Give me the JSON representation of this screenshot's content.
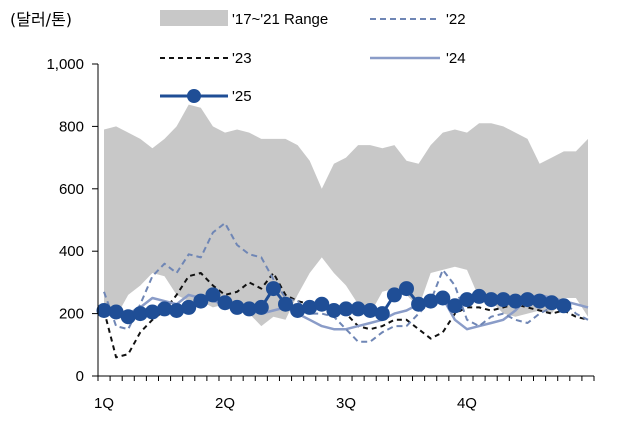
{
  "chart_data": {
    "type": "line",
    "unit_label": "(달러/톤)",
    "x_tick_labels": [
      "1Q",
      "2Q",
      "3Q",
      "4Q"
    ],
    "x_tick_positions": [
      1,
      11,
      21,
      31
    ],
    "x_range": [
      1,
      41
    ],
    "ylim": [
      0,
      1000
    ],
    "y_ticks": [
      0,
      200,
      400,
      600,
      800,
      1000
    ],
    "y_tick_labels": [
      "0",
      "200",
      "400",
      "600",
      "800",
      "1,000"
    ],
    "grid": false,
    "legend_placement": "top",
    "range_band": {
      "name": "'17~'21 Range",
      "color": "#c8c8c8",
      "x": [
        1,
        2,
        3,
        4,
        5,
        6,
        7,
        8,
        9,
        10,
        11,
        12,
        13,
        14,
        15,
        16,
        17,
        18,
        19,
        20,
        21,
        22,
        23,
        24,
        25,
        26,
        27,
        28,
        29,
        30,
        31,
        32,
        33,
        34,
        35,
        36,
        37,
        38,
        39,
        40,
        41
      ],
      "upper": [
        790,
        800,
        780,
        760,
        730,
        760,
        800,
        870,
        860,
        800,
        780,
        790,
        780,
        760,
        760,
        760,
        740,
        690,
        600,
        680,
        700,
        740,
        740,
        730,
        740,
        690,
        680,
        740,
        780,
        790,
        780,
        810,
        810,
        800,
        780,
        760,
        680,
        700,
        720,
        720,
        760
      ],
      "lower": [
        200,
        190,
        260,
        290,
        330,
        320,
        260,
        240,
        240,
        220,
        230,
        220,
        200,
        160,
        190,
        180,
        260,
        330,
        380,
        330,
        290,
        230,
        200,
        270,
        280,
        260,
        220,
        330,
        340,
        350,
        340,
        250,
        240,
        200,
        190,
        200,
        210,
        200,
        250,
        250,
        190
      ]
    },
    "series": [
      {
        "name": "'22",
        "color": "#6f86b5",
        "style": "dashed",
        "x": [
          1,
          2,
          3,
          4,
          5,
          6,
          7,
          8,
          9,
          10,
          11,
          12,
          13,
          14,
          15,
          16,
          17,
          18,
          19,
          20,
          21,
          22,
          23,
          24,
          25,
          26,
          27,
          28,
          29,
          30,
          31,
          32,
          33,
          34,
          35,
          36,
          37,
          38,
          39,
          40,
          41
        ],
        "values": [
          270,
          160,
          150,
          230,
          320,
          360,
          330,
          390,
          380,
          460,
          490,
          420,
          390,
          380,
          310,
          250,
          240,
          200,
          200,
          190,
          150,
          110,
          110,
          140,
          160,
          160,
          200,
          240,
          340,
          290,
          180,
          160,
          190,
          200,
          180,
          170,
          200,
          220,
          240,
          200,
          180
        ]
      },
      {
        "name": "'23",
        "color": "#111111",
        "style": "dashed",
        "x": [
          1,
          2,
          3,
          4,
          5,
          6,
          7,
          8,
          9,
          10,
          11,
          12,
          13,
          14,
          15,
          16,
          17,
          18,
          19,
          20,
          21,
          22,
          23,
          24,
          25,
          26,
          27,
          28,
          29,
          30,
          31,
          32,
          33,
          34,
          35,
          36,
          37,
          38,
          39,
          40,
          41
        ],
        "values": [
          210,
          60,
          70,
          140,
          180,
          210,
          260,
          320,
          330,
          290,
          260,
          270,
          300,
          280,
          330,
          260,
          240,
          230,
          220,
          210,
          200,
          160,
          150,
          160,
          180,
          180,
          150,
          120,
          140,
          200,
          220,
          220,
          210,
          220,
          230,
          220,
          210,
          200,
          210,
          190,
          180
        ]
      },
      {
        "name": "'24",
        "color": "#8a9cc8",
        "style": "solid",
        "x": [
          1,
          2,
          3,
          4,
          5,
          6,
          7,
          8,
          9,
          10,
          11,
          12,
          13,
          14,
          15,
          16,
          17,
          18,
          19,
          20,
          21,
          22,
          23,
          24,
          25,
          26,
          27,
          28,
          29,
          30,
          31,
          32,
          33,
          34,
          35,
          36,
          37,
          38,
          39,
          40,
          41
        ],
        "values": [
          230,
          190,
          200,
          220,
          250,
          240,
          230,
          260,
          250,
          240,
          230,
          220,
          210,
          200,
          210,
          220,
          200,
          180,
          160,
          150,
          150,
          160,
          170,
          180,
          200,
          210,
          230,
          240,
          250,
          180,
          150,
          160,
          170,
          180,
          210,
          250,
          260,
          250,
          240,
          230,
          220
        ]
      },
      {
        "name": "'25",
        "color": "#1f4e96",
        "style": "solid-markers",
        "x": [
          1,
          2,
          3,
          4,
          5,
          6,
          7,
          8,
          9,
          10,
          11,
          12,
          13,
          14,
          15,
          16,
          17,
          18,
          19,
          20,
          21,
          22,
          23,
          24,
          25,
          26,
          27,
          28,
          29,
          30,
          31,
          32,
          33,
          34,
          35,
          36,
          37,
          38,
          39
        ],
        "values": [
          210,
          205,
          190,
          200,
          205,
          215,
          210,
          220,
          240,
          260,
          235,
          220,
          215,
          220,
          280,
          230,
          210,
          220,
          230,
          210,
          215,
          215,
          210,
          200,
          260,
          280,
          230,
          240,
          250,
          225,
          245,
          255,
          245,
          245,
          240,
          245,
          240,
          235,
          225
        ]
      }
    ],
    "legend": [
      {
        "key": "range",
        "label": "'17~'21 Range"
      },
      {
        "key": "s22",
        "label": "'22"
      },
      {
        "key": "s23",
        "label": "'23"
      },
      {
        "key": "s24",
        "label": "'24"
      },
      {
        "key": "s25",
        "label": "'25"
      }
    ]
  }
}
